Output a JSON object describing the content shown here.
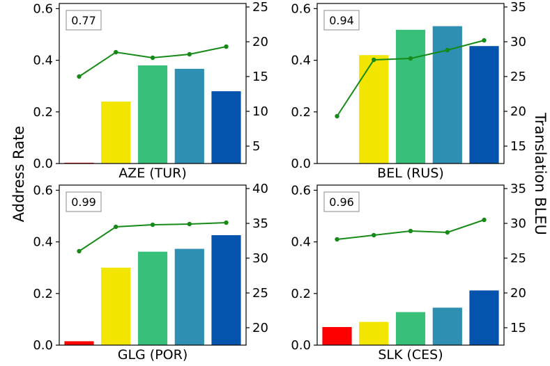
{
  "figure": {
    "ylabel_left": "Address Rate",
    "ylabel_right": "Translation BLEU"
  },
  "chart_data": [
    {
      "type": "bar+line",
      "xlabel": "AZE (TUR)",
      "annotation": "0.77",
      "bar_colors": [
        "#ff0000",
        "#f2e600",
        "#38bf7a",
        "#2e8fb3",
        "#0454ad"
      ],
      "line_color": "#168a16",
      "left_axis": {
        "ylim": [
          0,
          0.62
        ],
        "ticks": [
          "0.0",
          "0.2",
          "0.4",
          "0.6"
        ],
        "tick_values": [
          0,
          0.2,
          0.4,
          0.6
        ]
      },
      "right_axis": {
        "ylim": [
          2.5,
          25.5
        ],
        "ticks": [
          "5",
          "10",
          "15",
          "20",
          "25"
        ],
        "tick_values": [
          5,
          10,
          15,
          20,
          25
        ]
      },
      "address_rate": [
        0.003,
        0.24,
        0.38,
        0.367,
        0.28
      ],
      "translation_bleu": [
        15.0,
        18.5,
        17.7,
        18.2,
        19.3
      ]
    },
    {
      "type": "bar+line",
      "xlabel": "BEL (RUS)",
      "annotation": "0.94",
      "bar_colors": [
        "#ff0000",
        "#f2e600",
        "#38bf7a",
        "#2e8fb3",
        "#0454ad"
      ],
      "line_color": "#168a16",
      "left_axis": {
        "ylim": [
          0,
          0.62
        ],
        "ticks": [
          "0.0",
          "0.2",
          "0.4",
          "0.6"
        ],
        "tick_values": [
          0,
          0.2,
          0.4,
          0.6
        ]
      },
      "right_axis": {
        "ylim": [
          12.5,
          35.5
        ],
        "ticks": [
          "15",
          "20",
          "25",
          "30",
          "35"
        ],
        "tick_values": [
          15,
          20,
          25,
          30,
          35
        ]
      },
      "address_rate": [
        0.0,
        0.42,
        0.518,
        0.532,
        0.455
      ],
      "translation_bleu": [
        19.3,
        27.4,
        27.6,
        28.8,
        30.2
      ]
    },
    {
      "type": "bar+line",
      "xlabel": "GLG (POR)",
      "annotation": "0.99",
      "bar_colors": [
        "#ff0000",
        "#f2e600",
        "#38bf7a",
        "#2e8fb3",
        "#0454ad"
      ],
      "line_color": "#168a16",
      "left_axis": {
        "ylim": [
          0,
          0.62
        ],
        "ticks": [
          "0.0",
          "0.2",
          "0.4",
          "0.6"
        ],
        "tick_values": [
          0,
          0.2,
          0.4,
          0.6
        ]
      },
      "right_axis": {
        "ylim": [
          17.5,
          40.5
        ],
        "ticks": [
          "20",
          "25",
          "30",
          "35",
          "40"
        ],
        "tick_values": [
          20,
          25,
          30,
          35,
          40
        ]
      },
      "address_rate": [
        0.015,
        0.3,
        0.362,
        0.373,
        0.426
      ],
      "translation_bleu": [
        31.0,
        34.5,
        34.8,
        34.9,
        35.1
      ]
    },
    {
      "type": "bar+line",
      "xlabel": "SLK (CES)",
      "annotation": "0.96",
      "bar_colors": [
        "#ff0000",
        "#f2e600",
        "#38bf7a",
        "#2e8fb3",
        "#0454ad"
      ],
      "line_color": "#168a16",
      "left_axis": {
        "ylim": [
          0,
          0.62
        ],
        "ticks": [
          "0.0",
          "0.2",
          "0.4",
          "0.6"
        ],
        "tick_values": [
          0,
          0.2,
          0.4,
          0.6
        ]
      },
      "right_axis": {
        "ylim": [
          12.5,
          35.5
        ],
        "ticks": [
          "15",
          "20",
          "25",
          "30",
          "35"
        ],
        "tick_values": [
          15,
          20,
          25,
          30,
          35
        ]
      },
      "address_rate": [
        0.07,
        0.09,
        0.128,
        0.145,
        0.212
      ],
      "translation_bleu": [
        27.7,
        28.3,
        28.9,
        28.7,
        30.5
      ]
    }
  ]
}
